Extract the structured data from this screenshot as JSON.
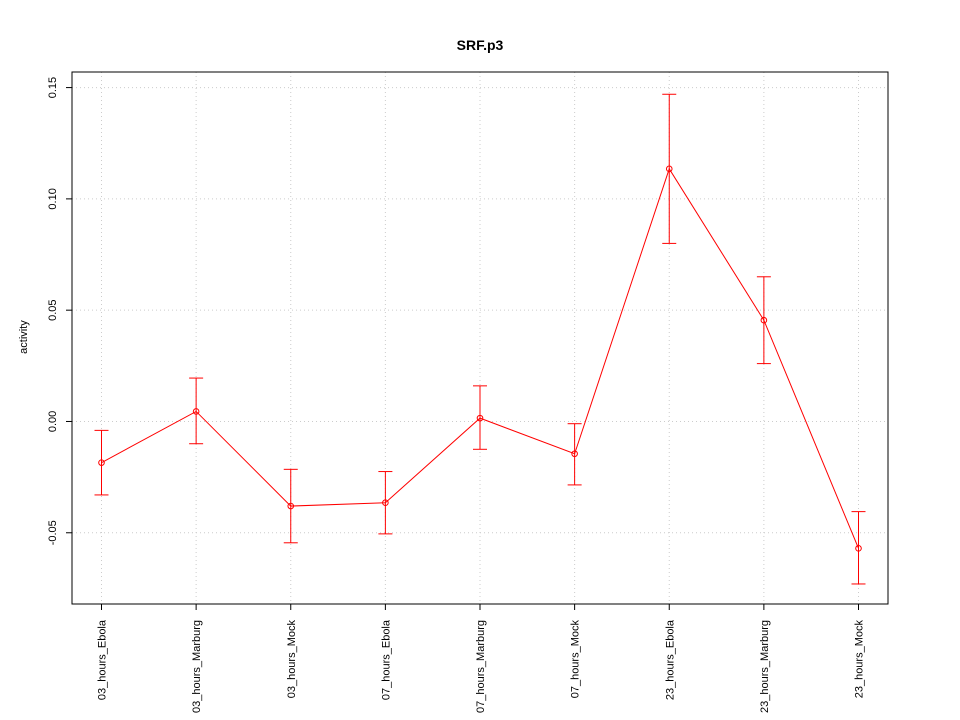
{
  "chart_data": {
    "type": "line",
    "title": "SRF.p3",
    "xlabel": "",
    "ylabel": "activity",
    "categories": [
      "03_hours_Ebola",
      "03_hours_Marburg",
      "03_hours_Mock",
      "07_hours_Ebola",
      "07_hours_Marburg",
      "07_hours_Mock",
      "23_hours_Ebola",
      "23_hours_Marburg",
      "23_hours_Mock"
    ],
    "series": [
      {
        "values": [
          -0.0185,
          0.0045,
          -0.038,
          -0.0365,
          0.0015,
          -0.0145,
          0.1135,
          0.0455,
          -0.057
        ],
        "error_lower": [
          -0.033,
          -0.01,
          -0.0545,
          -0.0505,
          -0.0125,
          -0.0285,
          0.08,
          0.026,
          -0.073
        ],
        "error_upper": [
          -0.004,
          0.0195,
          -0.0215,
          -0.0225,
          0.016,
          -0.001,
          0.147,
          0.065,
          -0.0405
        ],
        "color": "#ff0000"
      }
    ],
    "yticks": [
      -0.05,
      0.0,
      0.05,
      0.1,
      0.15
    ],
    "ytick_labels": [
      "-0.05",
      "0.00",
      "0.05",
      "0.10",
      "0.15"
    ],
    "ylim": [
      -0.082,
      0.157
    ],
    "grid": true,
    "grid_color": "#cccccc",
    "legend": "none"
  }
}
